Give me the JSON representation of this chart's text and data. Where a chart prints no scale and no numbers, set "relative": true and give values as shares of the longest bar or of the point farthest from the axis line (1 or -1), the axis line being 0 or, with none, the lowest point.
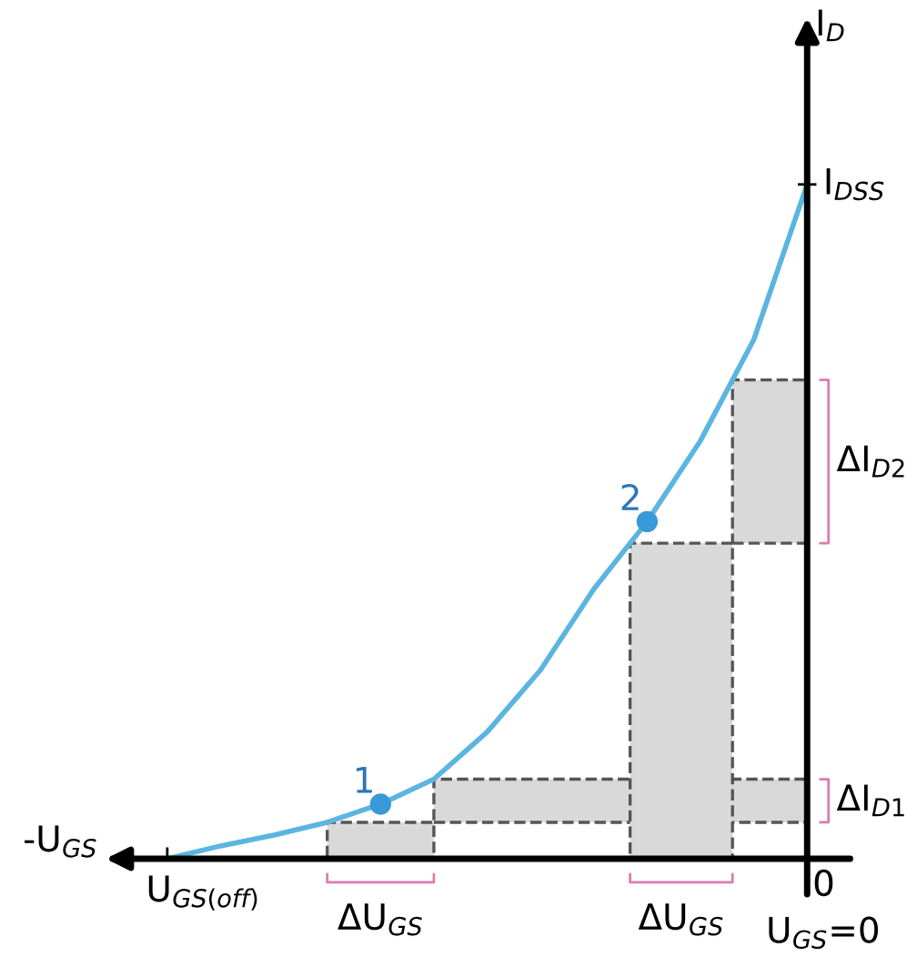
{
  "chart_data": {
    "type": "line",
    "relative": true,
    "xlabel": "-U$_{GS}$",
    "ylabel": "I$_{D}$",
    "categories": [
      null,
      null,
      null,
      null,
      null,
      null,
      null,
      null,
      null,
      null,
      null,
      null,
      null
    ],
    "series": [
      {
        "color": "#5bb5e0",
        "values": [
          0,
          0.019,
          0.035,
          0.054,
          0.081,
          0.118,
          0.188,
          0.28,
          0.4,
          0.5,
          0.62,
          0.77,
          1.0
        ]
      }
    ],
    "bands": [
      {
        "axis": "y",
        "from": 0.054,
        "to": 0.118,
        "label": "ΔI$_{D1}$",
        "color": "#d9d9d9"
      },
      {
        "axis": "y",
        "from": 0.468,
        "to": 0.71,
        "label": "ΔI$_{D2}$",
        "color": "#d9d9d9"
      }
    ],
    "annotations": [
      {
        "text": "1",
        "y": 0.081
      },
      {
        "text": "2",
        "y": 0.5
      },
      "U$_{GS(off)}$",
      "0",
      "U$_{GS}$=0",
      "I$_{DSS}$",
      "ΔU$_{GS}$",
      "ΔU$_{GS}$"
    ],
    "legend": false
  }
}
